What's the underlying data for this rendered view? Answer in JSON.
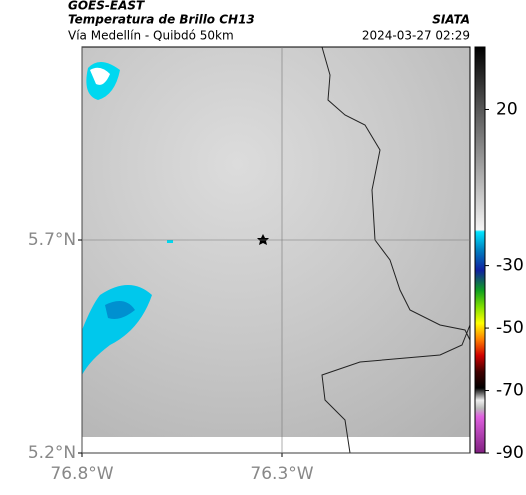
{
  "header": {
    "satellite": "GOES-EAST",
    "product": "Temperatura de Brillo CH13",
    "agency": "SIATA",
    "route": "Vía Medellín - Quibdó 50km",
    "timestamp": "2024-03-27 02:29"
  },
  "map": {
    "lon_range": [
      -76.8,
      -75.83
    ],
    "lat_range": [
      5.2,
      6.153
    ],
    "lon_ticks": [
      {
        "value": -76.8,
        "label": "76.8°W"
      },
      {
        "value": -76.3,
        "label": "76.3°W"
      }
    ],
    "lat_ticks": [
      {
        "value": 5.7,
        "label": "5.7°N"
      },
      {
        "value": 5.2,
        "label": "5.2°N"
      }
    ]
  },
  "colorbar": {
    "range": [
      -90,
      40
    ],
    "ticks": [
      20,
      -30,
      -50,
      -70,
      -90
    ]
  }
}
